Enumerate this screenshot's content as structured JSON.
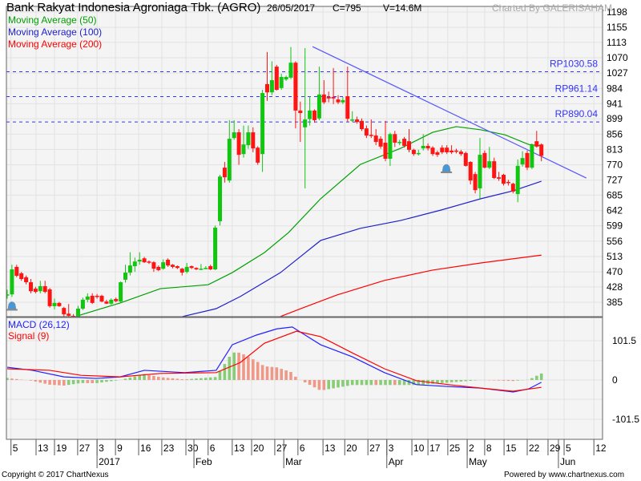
{
  "header": {
    "title": "Bank Rakyat Indonesia Agroniaga Tbk. (AGRO)",
    "date": "26/05/2017",
    "close": "C=795",
    "volume": "V=14.6M",
    "charted_by": "Charted By GALERISAHAM"
  },
  "legend": [
    {
      "label": "Moving Average (50)",
      "color": "#00a000"
    },
    {
      "label": "Moving Average (100)",
      "color": "#2020ff"
    },
    {
      "label": "Moving Average (200)",
      "color": "#ff0000"
    }
  ],
  "macd_legend": [
    {
      "label": "MACD (26,12)",
      "color": "#2020ff"
    },
    {
      "label": "Signal (9)",
      "color": "#ff0000"
    }
  ],
  "footer": {
    "copyright": "Copyright © 2017 ChartNexus",
    "powered": "Powered by www.chartnexus.com"
  },
  "colors": {
    "up": "#11c611",
    "down": "#ff1414",
    "panel_bg": "#f4f4f4",
    "grid": "#e2e2e2",
    "level_line": "#3333ff",
    "trendline": "#5555ff",
    "hist_up": "#88cc77",
    "hist_down": "#ee9988",
    "alert": "#4499dd"
  },
  "chart_data": [
    {
      "type": "candlestick",
      "title": "Bank Rakyat Indonesia Agroniaga Tbk. (AGRO)",
      "ylim": [
        385,
        1198
      ],
      "y_ticks": [
        1198,
        1155,
        1113,
        1070,
        1027,
        984,
        941,
        899,
        856,
        813,
        770,
        727,
        685,
        642,
        599,
        556,
        513,
        470,
        428,
        385
      ],
      "x_ticks": [
        {
          "label": "5",
          "bar": 0.8
        },
        {
          "label": "13",
          "bar": 6.1
        },
        {
          "label": "19",
          "bar": 10
        },
        {
          "label": "27",
          "bar": 14.9
        },
        {
          "label": "3",
          "bar": 19
        },
        {
          "label": "9",
          "bar": 22.9
        },
        {
          "label": "16",
          "bar": 27.8
        },
        {
          "label": "23",
          "bar": 32.7
        },
        {
          "label": "30",
          "bar": 37.8
        },
        {
          "label": "6",
          "bar": 42.5
        },
        {
          "label": "13",
          "bar": 47.6
        },
        {
          "label": "20",
          "bar": 51.7
        },
        {
          "label": "27",
          "bar": 56.6
        },
        {
          "label": "6",
          "bar": 61.5
        },
        {
          "label": "13",
          "bar": 66.8
        },
        {
          "label": "20",
          "bar": 71.4
        },
        {
          "label": "27",
          "bar": 76.3
        },
        {
          "label": "3",
          "bar": 80.3
        },
        {
          "label": "10",
          "bar": 85.6
        },
        {
          "label": "17",
          "bar": 89
        },
        {
          "label": "25",
          "bar": 93.2
        },
        {
          "label": "2",
          "bar": 97.3
        },
        {
          "label": "8",
          "bar": 101
        },
        {
          "label": "15",
          "bar": 105.1
        },
        {
          "label": "22",
          "bar": 110
        },
        {
          "label": "29",
          "bar": 114.4
        },
        {
          "label": "5",
          "bar": 117.8
        },
        {
          "label": "12",
          "bar": 124.1
        }
      ],
      "month_labels": [
        {
          "label": "2017",
          "bar": 19
        },
        {
          "label": "Feb",
          "bar": 39.5
        },
        {
          "label": "Mar",
          "bar": 58.5
        },
        {
          "label": "Apr",
          "bar": 80.3
        },
        {
          "label": "May",
          "bar": 97.3
        },
        {
          "label": "Jun",
          "bar": 116.6
        }
      ],
      "ohlc": [
        [
          405,
          420,
          395,
          407
        ],
        [
          407,
          490,
          400,
          477
        ],
        [
          484,
          490,
          455,
          459
        ],
        [
          466,
          470,
          445,
          450
        ],
        [
          455,
          460,
          435,
          441
        ],
        [
          441,
          450,
          410,
          416
        ],
        [
          423,
          428,
          410,
          414
        ],
        [
          416,
          445,
          410,
          430
        ],
        [
          430,
          445,
          410,
          414
        ],
        [
          421,
          425,
          370,
          374
        ],
        [
          374,
          395,
          365,
          383
        ],
        [
          383,
          386,
          372,
          374
        ],
        [
          369,
          372,
          345,
          351
        ],
        [
          353,
          380,
          345,
          347
        ],
        [
          347,
          352,
          343,
          345
        ],
        [
          345,
          375,
          343,
          367
        ],
        [
          367,
          398,
          363,
          392
        ],
        [
          392,
          410,
          385,
          401
        ],
        [
          403,
          410,
          380,
          383
        ],
        [
          403,
          408,
          395,
          401
        ],
        [
          403,
          406,
          385,
          387
        ],
        [
          387,
          392,
          380,
          381
        ],
        [
          381,
          396,
          378,
          392
        ],
        [
          394,
          398,
          385,
          388
        ],
        [
          387,
          443,
          385,
          441
        ],
        [
          448,
          490,
          440,
          468
        ],
        [
          468,
          525,
          460,
          488
        ],
        [
          486,
          510,
          470,
          499
        ],
        [
          499,
          525,
          490,
          504
        ],
        [
          508,
          512,
          495,
          497
        ],
        [
          499,
          502,
          492,
          497
        ],
        [
          497,
          500,
          470,
          479
        ],
        [
          484,
          488,
          472,
          475
        ],
        [
          479,
          505,
          476,
          497
        ],
        [
          504,
          508,
          484,
          488
        ],
        [
          490,
          492,
          480,
          484
        ],
        [
          486,
          488,
          478,
          481
        ],
        [
          479,
          481,
          460,
          468
        ],
        [
          470,
          495,
          466,
          484
        ],
        [
          486,
          488,
          478,
          481
        ],
        [
          481,
          483,
          475,
          477
        ],
        [
          477,
          492,
          475,
          479
        ],
        [
          481,
          486,
          478,
          481
        ],
        [
          486,
          490,
          475,
          477
        ],
        [
          477,
          600,
          475,
          594
        ],
        [
          612,
          742,
          600,
          737
        ],
        [
          762,
          778,
          720,
          735
        ],
        [
          726,
          895,
          720,
          843
        ],
        [
          845,
          895,
          840,
          861
        ],
        [
          861,
          870,
          770,
          798
        ],
        [
          800,
          880,
          790,
          827
        ],
        [
          825,
          880,
          815,
          861
        ],
        [
          861,
          875,
          805,
          816
        ],
        [
          818,
          822,
          770,
          776
        ],
        [
          800,
          980,
          750,
          971
        ],
        [
          996,
          1086,
          949,
          973
        ],
        [
          973,
          1060,
          965,
          1007
        ],
        [
          1045,
          1050,
          978,
          980
        ],
        [
          985,
          1025,
          980,
          1016
        ],
        [
          1009,
          1020,
          1005,
          1016
        ],
        [
          1014,
          1100,
          1010,
          1056
        ],
        [
          1056,
          1060,
          872,
          922
        ],
        [
          922,
          947,
          834,
          915
        ],
        [
          875,
          1097,
          704,
          897
        ],
        [
          898,
          962,
          880,
          922
        ],
        [
          922,
          925,
          888,
          895
        ],
        [
          900,
          1045,
          895,
          967
        ],
        [
          967,
          1007,
          940,
          945
        ],
        [
          960,
          975,
          945,
          956
        ],
        [
          960,
          1041,
          940,
          956
        ],
        [
          953,
          965,
          940,
          945
        ],
        [
          945,
          960,
          940,
          951
        ],
        [
          962,
          1045,
          890,
          899
        ],
        [
          897,
          920,
          890,
          897
        ],
        [
          897,
          905,
          885,
          890
        ],
        [
          893,
          900,
          865,
          870
        ],
        [
          872,
          880,
          845,
          852
        ],
        [
          854,
          897,
          845,
          852
        ],
        [
          852,
          870,
          825,
          834
        ],
        [
          843,
          850,
          815,
          821
        ],
        [
          832,
          893,
          780,
          787
        ],
        [
          787,
          860,
          767,
          856
        ],
        [
          856,
          865,
          820,
          832
        ],
        [
          834,
          840,
          825,
          834
        ],
        [
          843,
          848,
          818,
          823
        ],
        [
          836,
          870,
          805,
          812
        ],
        [
          812,
          815,
          795,
          800
        ],
        [
          800,
          812,
          796,
          803
        ],
        [
          816,
          856,
          810,
          823
        ],
        [
          823,
          830,
          810,
          816
        ],
        [
          818,
          822,
          795,
          800
        ],
        [
          805,
          810,
          792,
          798
        ],
        [
          818,
          825,
          800,
          805
        ],
        [
          818,
          825,
          800,
          805
        ],
        [
          810,
          825,
          800,
          805
        ],
        [
          810,
          815,
          802,
          807
        ],
        [
          807,
          812,
          795,
          800
        ],
        [
          803,
          807,
          765,
          767
        ],
        [
          778,
          780,
          715,
          726
        ],
        [
          744,
          750,
          690,
          699
        ],
        [
          704,
          845,
          675,
          798
        ],
        [
          803,
          810,
          760,
          762
        ],
        [
          762,
          820,
          758,
          780
        ],
        [
          780,
          790,
          730,
          733
        ],
        [
          735,
          750,
          725,
          731
        ],
        [
          742,
          745,
          712,
          717
        ],
        [
          722,
          728,
          712,
          719
        ],
        [
          717,
          720,
          690,
          695
        ],
        [
          688,
          785,
          665,
          767
        ],
        [
          771,
          808,
          765,
          789
        ],
        [
          803,
          810,
          755,
          762
        ],
        [
          762,
          830,
          758,
          825
        ],
        [
          836,
          865,
          818,
          821
        ],
        [
          827,
          830,
          780,
          795
        ]
      ],
      "moving_averages": [
        {
          "name": "Moving Average (50)",
          "color": "#00a000",
          "points": [
            [
              15.4,
              349
            ],
            [
              23.9,
              383
            ],
            [
              32.4,
              423
            ],
            [
              42.5,
              434
            ],
            [
              47.6,
              468
            ],
            [
              54.4,
              524
            ],
            [
              59.5,
              580
            ],
            [
              66.3,
              675
            ],
            [
              74.7,
              771
            ],
            [
              83.2,
              816
            ],
            [
              90,
              861
            ],
            [
              95,
              877
            ],
            [
              100.2,
              868
            ],
            [
              105.3,
              854
            ],
            [
              110.3,
              827
            ],
            [
              113,
              823
            ]
          ]
        },
        {
          "name": "Moving Average (100)",
          "color": "#2020cc",
          "points": [
            [
              37.1,
              345
            ],
            [
              44.2,
              367
            ],
            [
              49.3,
              401
            ],
            [
              57.8,
              468
            ],
            [
              66.3,
              558
            ],
            [
              74.7,
              592
            ],
            [
              83.2,
              614
            ],
            [
              91.7,
              643
            ],
            [
              100.2,
              675
            ],
            [
              107,
              697
            ],
            [
              113,
              724
            ]
          ]
        },
        {
          "name": "Moving Average (200)",
          "color": "#ff0000",
          "points": [
            [
              57.8,
              345
            ],
            [
              62.9,
              371
            ],
            [
              69.7,
              405
            ],
            [
              79.8,
              446
            ],
            [
              90,
              475
            ],
            [
              100.2,
              495
            ],
            [
              113,
              517
            ]
          ]
        }
      ],
      "levels": [
        {
          "label": "RP1030.58",
          "value": 1030.58
        },
        {
          "label": "RP961.14",
          "value": 961.14
        },
        {
          "label": "RP890.04",
          "value": 890.04
        }
      ],
      "trendline": [
        [
          64.6,
          1101
        ],
        [
          122.5,
          733
        ]
      ],
      "alerts": [
        [
          1,
          375
        ],
        [
          92.9,
          760
        ]
      ]
    },
    {
      "type": "line",
      "ylim": [
        -130,
        170
      ],
      "y_ticks": [
        101.5,
        0,
        -101.5
      ],
      "series": [
        {
          "name": "MACD (26,12)",
          "color": "#2020ff",
          "points": [
            [
              0,
              33
            ],
            [
              5.3,
              25
            ],
            [
              12,
              8
            ],
            [
              18.8,
              4
            ],
            [
              23.9,
              8
            ],
            [
              29,
              25
            ],
            [
              37.5,
              19
            ],
            [
              44.2,
              25
            ],
            [
              47.6,
              91
            ],
            [
              52.7,
              116
            ],
            [
              57,
              132
            ],
            [
              60.3,
              137
            ],
            [
              66.3,
              91
            ],
            [
              73,
              60
            ],
            [
              79.8,
              19
            ],
            [
              86.6,
              -12
            ],
            [
              93.4,
              -17
            ],
            [
              100.2,
              -21
            ],
            [
              107,
              -31
            ],
            [
              110.3,
              -23
            ],
            [
              113,
              -6
            ]
          ]
        },
        {
          "name": "Signal (9)",
          "color": "#ff0000",
          "points": [
            [
              0,
              29
            ],
            [
              9,
              25
            ],
            [
              15.6,
              12
            ],
            [
              23.9,
              8
            ],
            [
              32.4,
              17
            ],
            [
              44.2,
              19
            ],
            [
              49.3,
              45
            ],
            [
              54.4,
              95
            ],
            [
              61.2,
              126
            ],
            [
              66.3,
              112
            ],
            [
              73,
              70
            ],
            [
              79.8,
              29
            ],
            [
              86.6,
              -2
            ],
            [
              93.4,
              -12
            ],
            [
              100.2,
              -21
            ],
            [
              107,
              -29
            ],
            [
              113,
              -19
            ]
          ]
        }
      ]
    }
  ]
}
